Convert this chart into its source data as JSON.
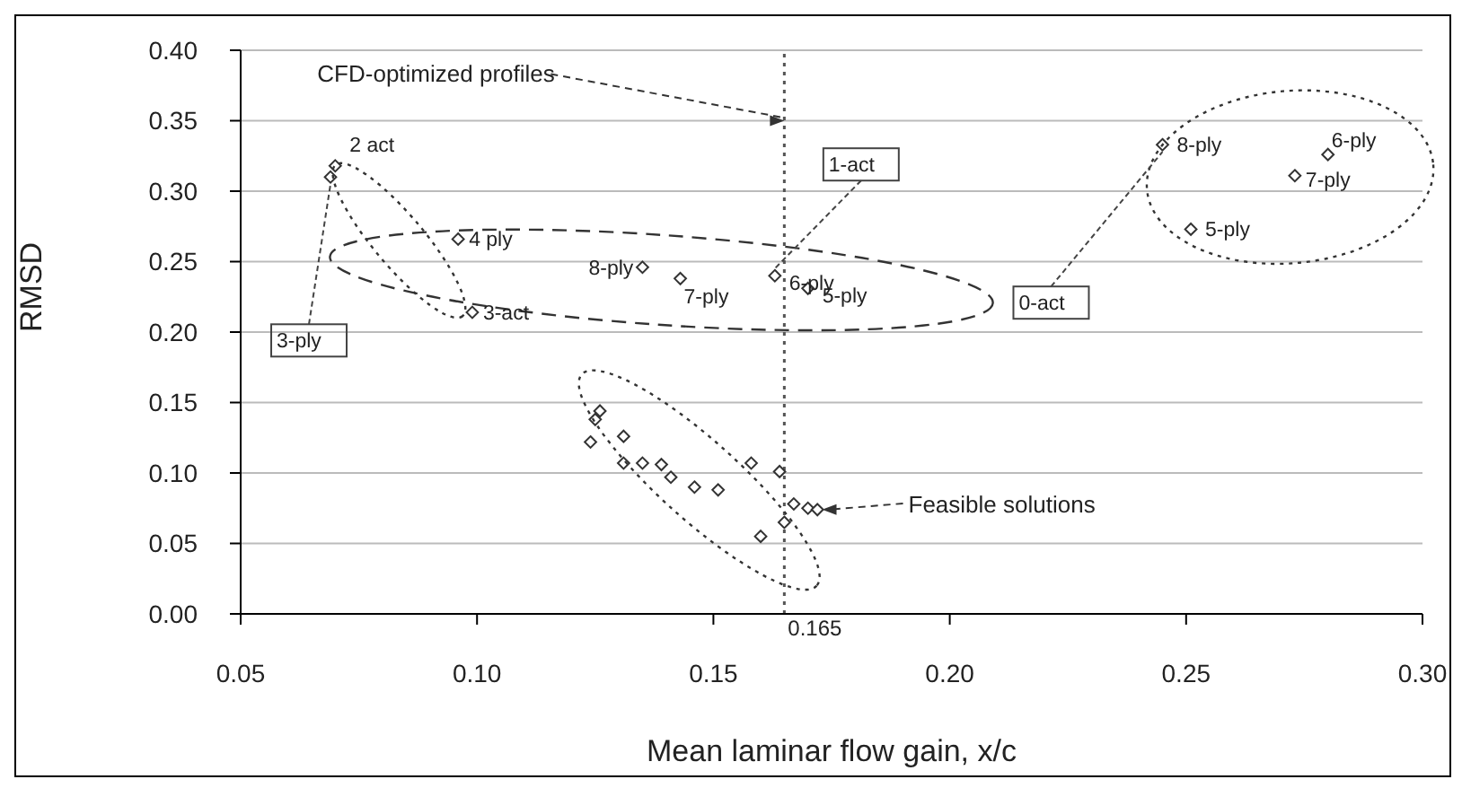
{
  "chart_data": {
    "type": "scatter",
    "xlabel": "Mean laminar flow gain, x/c",
    "ylabel": "RMSD",
    "x": [
      0.07,
      0.069,
      0.096,
      0.099,
      0.135,
      0.143,
      0.163,
      0.17,
      0.245,
      0.28,
      0.273,
      0.251,
      0.126,
      0.125,
      0.131,
      0.124,
      0.131,
      0.135,
      0.139,
      0.141,
      0.146,
      0.151,
      0.158,
      0.164,
      0.167,
      0.17,
      0.165,
      0.16,
      0.172
    ],
    "series": [
      {
        "color": "#333333",
        "values": [
          0.318,
          0.31,
          0.266,
          0.214,
          0.246,
          0.238,
          0.24,
          0.231,
          0.333,
          0.326,
          0.311,
          0.273,
          0.144,
          0.138,
          0.126,
          0.122,
          0.107,
          0.107,
          0.106,
          0.097,
          0.09,
          0.088,
          0.107,
          0.101,
          0.078,
          0.075,
          0.065,
          0.055,
          0.074
        ]
      }
    ],
    "marker": "diamond",
    "xlim": [
      0.05,
      0.3
    ],
    "xticks": [
      {
        "value": 0.05,
        "label": "0.05"
      },
      {
        "value": 0.1,
        "label": "0.10"
      },
      {
        "value": 0.15,
        "label": "0.15"
      },
      {
        "value": 0.2,
        "label": "0.20"
      },
      {
        "value": 0.25,
        "label": "0.25"
      },
      {
        "value": 0.3,
        "label": "0.30"
      }
    ],
    "ylim": [
      0,
      0.4
    ],
    "yticks": [
      {
        "value": 0,
        "label": "0.00"
      },
      {
        "value": 0.05,
        "label": "0.05"
      },
      {
        "value": 0.1,
        "label": "0.10"
      },
      {
        "value": 0.15,
        "label": "0.15"
      },
      {
        "value": 0.2,
        "label": "0.20"
      },
      {
        "value": 0.25,
        "label": "0.25"
      },
      {
        "value": 0.3,
        "label": "0.30"
      },
      {
        "value": 0.35,
        "label": "0.35"
      },
      {
        "value": 0.4,
        "label": "0.40"
      }
    ],
    "grid": "y",
    "ref_lines": [
      {
        "axis": "x",
        "value": 0.165,
        "label": "0.165",
        "color": "#555555",
        "line_style": "dotted"
      }
    ],
    "annotations": [
      {
        "text": "CFD-optimized profiles",
        "x": 0.165,
        "y": 0.35
      },
      {
        "text": "2 act",
        "x": 0.07,
        "y": 0.318
      },
      {
        "text": "3-ply",
        "x": 0.069,
        "y": 0.31
      },
      {
        "text": "4 ply",
        "x": 0.096,
        "y": 0.266
      },
      {
        "text": "3-act",
        "x": 0.099,
        "y": 0.214
      },
      {
        "text": "8-ply",
        "x": 0.135,
        "y": 0.246
      },
      {
        "text": "7-ply",
        "x": 0.143,
        "y": 0.238
      },
      {
        "text": "6-ply",
        "x": 0.163,
        "y": 0.24
      },
      {
        "text": "5-ply",
        "x": 0.17,
        "y": 0.231
      },
      {
        "text": "1-act",
        "x": 0.163,
        "y": 0.24
      },
      {
        "text": "8-ply",
        "x": 0.245,
        "y": 0.333
      },
      {
        "text": "6-ply",
        "x": 0.28,
        "y": 0.326
      },
      {
        "text": "7-ply",
        "x": 0.273,
        "y": 0.311
      },
      {
        "text": "5-ply",
        "x": 0.251,
        "y": 0.273
      },
      {
        "text": "0-act",
        "x": 0.245,
        "y": 0.333
      },
      "Feasible solutions"
    ]
  }
}
